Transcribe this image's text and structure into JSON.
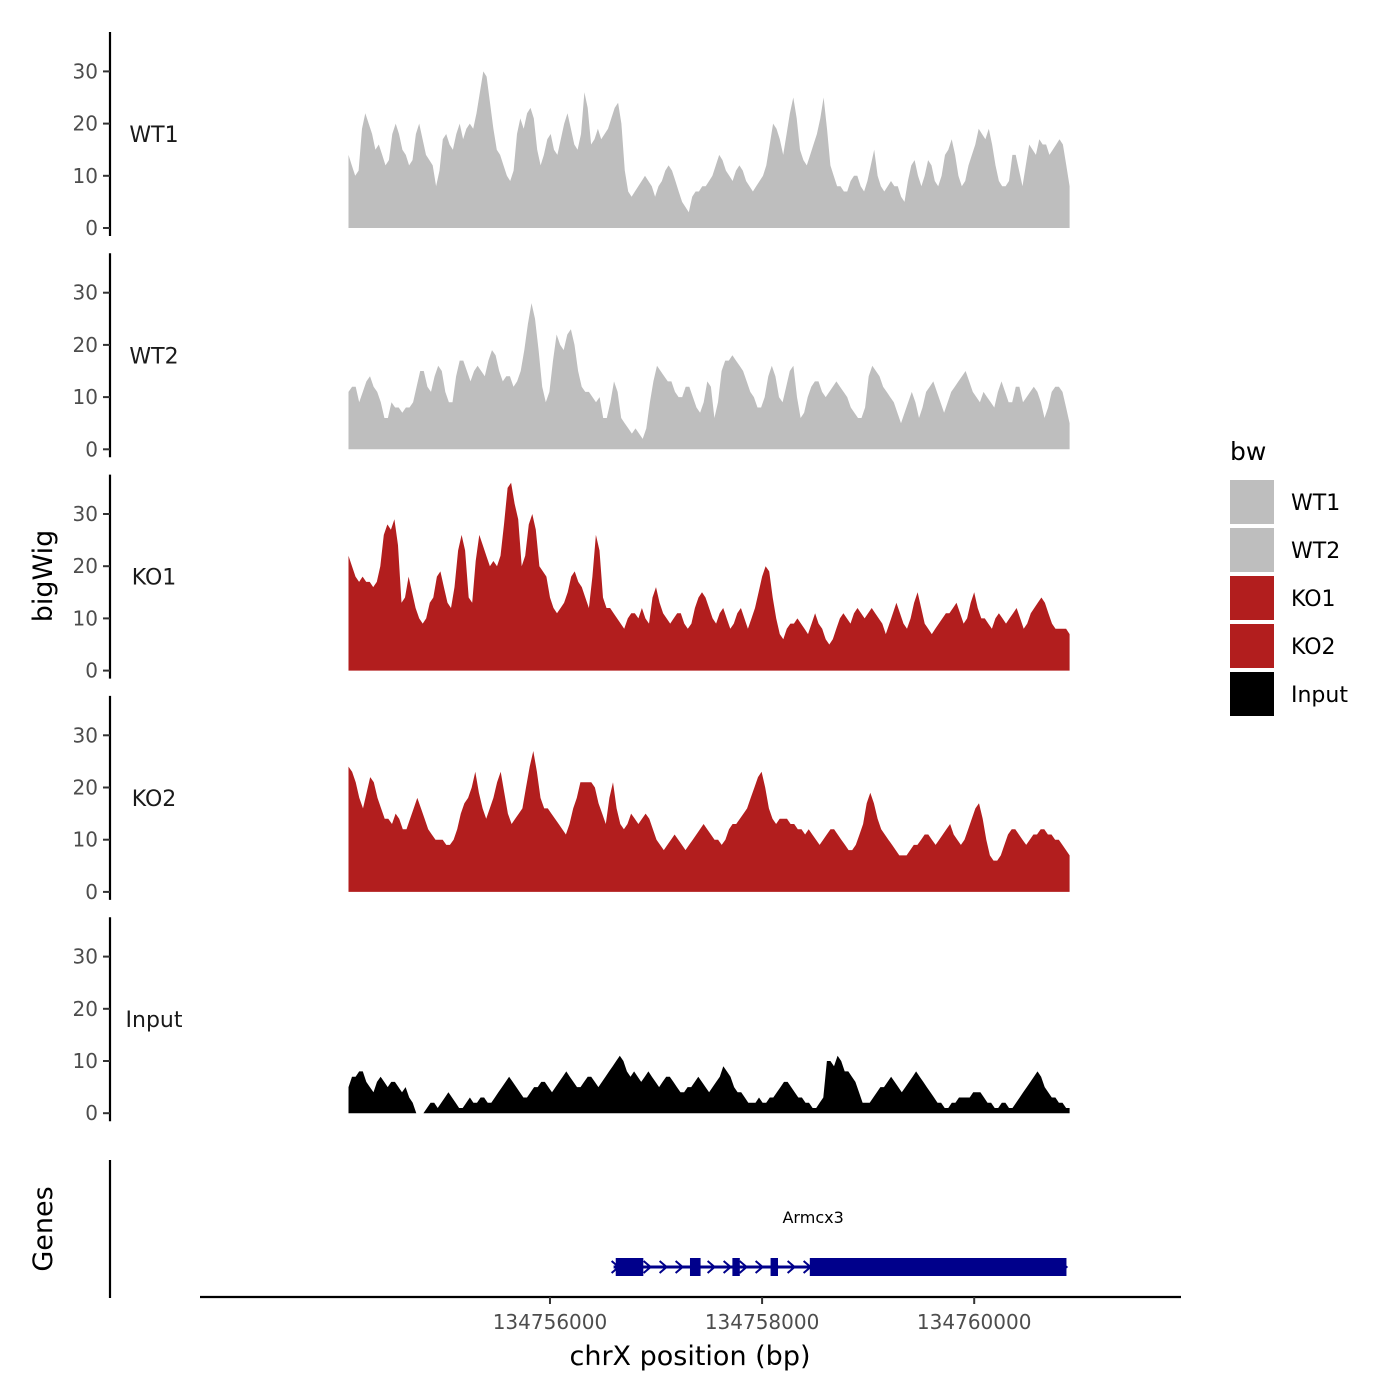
{
  "chart_data": {
    "type": "area",
    "xlabel": "chrX position (bp)",
    "ylabel": "bigWig",
    "xlim": [
      134752700,
      134761950
    ],
    "region_start": 134754100,
    "region_end": 134760900,
    "x_ticks": [
      {
        "value": 134756000,
        "label": "134756000"
      },
      {
        "value": 134758000,
        "label": "134758000"
      },
      {
        "value": 134760000,
        "label": "134760000"
      }
    ],
    "ylim": [
      0,
      37
    ],
    "y_ticks": [
      {
        "value": 0,
        "label": "0"
      },
      {
        "value": 10,
        "label": "10"
      },
      {
        "value": 20,
        "label": "20"
      },
      {
        "value": 30,
        "label": "30"
      }
    ],
    "series": [
      {
        "name": "WT1",
        "color": "#bebebe",
        "values": [
          14,
          12,
          10,
          11,
          19,
          22,
          20,
          18,
          15,
          16,
          14,
          12,
          13,
          18,
          20,
          18,
          15,
          14,
          12,
          13,
          18,
          20,
          17,
          14,
          13,
          12,
          8,
          11,
          17,
          18,
          16,
          15,
          18,
          20,
          17,
          19,
          20,
          19,
          22,
          26,
          30,
          29,
          24,
          19,
          15,
          14,
          12,
          10,
          9,
          11,
          18,
          21,
          19,
          22,
          23,
          21,
          15,
          12,
          14,
          17,
          18,
          15,
          14,
          17,
          20,
          22,
          19,
          16,
          15,
          18,
          26,
          23,
          16,
          17,
          19,
          17,
          18,
          19,
          21,
          23,
          24,
          20,
          11,
          7,
          6,
          7,
          8,
          9,
          10,
          9,
          8,
          6,
          8,
          9,
          11,
          12,
          11,
          9,
          7,
          5,
          4,
          3,
          6,
          7,
          7,
          8,
          8,
          9,
          10,
          12,
          14,
          13,
          11,
          10,
          9,
          11,
          12,
          11,
          9,
          8,
          7,
          8,
          9,
          10,
          12,
          16,
          20,
          19,
          17,
          14,
          18,
          22,
          25,
          21,
          15,
          13,
          12,
          14,
          16,
          18,
          21,
          25,
          19,
          12,
          10,
          8,
          8,
          7,
          7,
          9,
          10,
          10,
          8,
          7,
          9,
          12,
          15,
          10,
          8,
          7,
          8,
          9,
          8,
          8,
          6,
          5,
          9,
          12,
          13,
          10,
          8,
          10,
          13,
          12,
          9,
          8,
          10,
          14,
          15,
          17,
          14,
          10,
          8,
          9,
          12,
          14,
          16,
          19,
          18,
          17,
          19,
          16,
          12,
          9,
          8,
          8,
          9,
          14,
          14,
          11,
          8,
          12,
          16,
          15,
          14,
          17,
          16,
          16,
          14,
          15,
          16,
          17,
          16,
          12,
          8
        ]
      },
      {
        "name": "WT2",
        "color": "#bebebe",
        "values": [
          11,
          12,
          12,
          9,
          11,
          13,
          14,
          12,
          11,
          9,
          6,
          6,
          9,
          8,
          8,
          7,
          8,
          8,
          9,
          12,
          15,
          15,
          12,
          11,
          14,
          16,
          15,
          11,
          9,
          9,
          14,
          17,
          17,
          15,
          13,
          15,
          16,
          15,
          14,
          17,
          19,
          18,
          15,
          13,
          14,
          14,
          12,
          13,
          15,
          19,
          24,
          28,
          25,
          19,
          12,
          9,
          11,
          17,
          22,
          20,
          19,
          22,
          23,
          20,
          15,
          12,
          11,
          11,
          10,
          9,
          10,
          6,
          6,
          9,
          13,
          11,
          6,
          5,
          4,
          3,
          4,
          3,
          2,
          4,
          9,
          13,
          16,
          15,
          14,
          13,
          13,
          11,
          10,
          10,
          12,
          12,
          10,
          8,
          7,
          9,
          13,
          12,
          6,
          9,
          15,
          17,
          17,
          18,
          17,
          16,
          15,
          13,
          11,
          10,
          8,
          8,
          10,
          14,
          16,
          14,
          10,
          9,
          12,
          15,
          16,
          10,
          6,
          7,
          10,
          12,
          13,
          13,
          11,
          10,
          11,
          12,
          13,
          12,
          11,
          10,
          8,
          7,
          6,
          6,
          8,
          14,
          16,
          15,
          14,
          12,
          11,
          10,
          9,
          7,
          5,
          7,
          9,
          11,
          9,
          6,
          8,
          11,
          12,
          13,
          11,
          9,
          7,
          9,
          11,
          12,
          13,
          14,
          15,
          13,
          11,
          10,
          9,
          11,
          10,
          9,
          8,
          11,
          13,
          11,
          9,
          9,
          12,
          12,
          9,
          10,
          11,
          12,
          11,
          9,
          6,
          8,
          11,
          12,
          12,
          11,
          8,
          5
        ]
      },
      {
        "name": "KO1",
        "color": "#b21e1e",
        "values": [
          22,
          20,
          18,
          17,
          18,
          17,
          17,
          16,
          17,
          20,
          26,
          28,
          27,
          29,
          24,
          13,
          14,
          18,
          15,
          12,
          10,
          9,
          10,
          13,
          14,
          18,
          19,
          16,
          13,
          12,
          16,
          23,
          26,
          23,
          14,
          13,
          21,
          26,
          24,
          22,
          20,
          21,
          20,
          22,
          28,
          35,
          36,
          32,
          29,
          20,
          22,
          28,
          30,
          27,
          20,
          19,
          18,
          14,
          12,
          11,
          12,
          13,
          15,
          18,
          19,
          17,
          16,
          14,
          12,
          18,
          26,
          23,
          14,
          12,
          12,
          11,
          10,
          9,
          8,
          10,
          11,
          11,
          10,
          12,
          10,
          9,
          14,
          16,
          13,
          11,
          10,
          9,
          10,
          11,
          11,
          9,
          8,
          9,
          12,
          14,
          15,
          14,
          12,
          10,
          9,
          11,
          12,
          10,
          8,
          9,
          11,
          12,
          10,
          8,
          10,
          12,
          15,
          18,
          20,
          19,
          14,
          10,
          7,
          6,
          8,
          9,
          9,
          10,
          9,
          8,
          7,
          9,
          11,
          9,
          8,
          6,
          5,
          6,
          8,
          10,
          11,
          10,
          9,
          11,
          12,
          11,
          10,
          11,
          12,
          11,
          10,
          9,
          7,
          9,
          11,
          13,
          11,
          9,
          8,
          10,
          13,
          15,
          12,
          9,
          8,
          7,
          8,
          9,
          10,
          11,
          11,
          12,
          13,
          11,
          9,
          10,
          13,
          15,
          12,
          10,
          10,
          9,
          8,
          10,
          11,
          10,
          9,
          10,
          11,
          12,
          10,
          8,
          9,
          11,
          12,
          13,
          14,
          13,
          11,
          9,
          8,
          8,
          8,
          8,
          7
        ]
      },
      {
        "name": "KO2",
        "color": "#b21e1e",
        "values": [
          24,
          23,
          21,
          18,
          16,
          19,
          22,
          21,
          18,
          16,
          14,
          14,
          13,
          15,
          14,
          12,
          12,
          14,
          16,
          18,
          16,
          14,
          12,
          11,
          10,
          10,
          10,
          9,
          9,
          10,
          12,
          15,
          17,
          18,
          20,
          23,
          19,
          16,
          14,
          16,
          18,
          21,
          23,
          19,
          15,
          13,
          14,
          15,
          16,
          20,
          24,
          27,
          23,
          18,
          16,
          16,
          15,
          14,
          13,
          12,
          11,
          13,
          16,
          18,
          21,
          21,
          21,
          21,
          20,
          17,
          15,
          13,
          18,
          21,
          16,
          13,
          12,
          13,
          15,
          14,
          13,
          14,
          15,
          14,
          12,
          10,
          9,
          8,
          9,
          10,
          11,
          10,
          9,
          8,
          9,
          10,
          11,
          12,
          13,
          12,
          11,
          10,
          10,
          9,
          10,
          12,
          13,
          13,
          14,
          15,
          16,
          18,
          20,
          22,
          23,
          20,
          16,
          14,
          13,
          14,
          14,
          14,
          13,
          13,
          12,
          12,
          11,
          12,
          11,
          10,
          9,
          10,
          11,
          12,
          12,
          11,
          10,
          9,
          8,
          8,
          9,
          11,
          13,
          17,
          19,
          17,
          14,
          12,
          11,
          10,
          9,
          8,
          7,
          7,
          7,
          8,
          9,
          9,
          10,
          11,
          11,
          10,
          9,
          10,
          11,
          12,
          13,
          11,
          10,
          9,
          10,
          12,
          14,
          16,
          17,
          14,
          10,
          7,
          6,
          6,
          7,
          9,
          11,
          12,
          12,
          11,
          10,
          9,
          10,
          11,
          11,
          12,
          12,
          11,
          11,
          10,
          10,
          9,
          8,
          7
        ]
      },
      {
        "name": "Input",
        "color": "#000000",
        "values": [
          5,
          7,
          7,
          8,
          8,
          6,
          5,
          4,
          6,
          7,
          6,
          5,
          6,
          6,
          5,
          4,
          5,
          3,
          2,
          0,
          0,
          0,
          1,
          2,
          2,
          1,
          2,
          3,
          4,
          3,
          2,
          1,
          1,
          2,
          3,
          2,
          2,
          3,
          3,
          2,
          2,
          3,
          4,
          5,
          6,
          7,
          6,
          5,
          4,
          3,
          3,
          4,
          5,
          5,
          6,
          6,
          5,
          4,
          5,
          6,
          7,
          8,
          7,
          6,
          5,
          5,
          6,
          7,
          7,
          6,
          5,
          6,
          7,
          8,
          9,
          10,
          11,
          10,
          8,
          7,
          8,
          7,
          6,
          7,
          8,
          7,
          6,
          5,
          6,
          7,
          7,
          6,
          5,
          4,
          4,
          5,
          5,
          6,
          7,
          6,
          5,
          4,
          5,
          6,
          7,
          9,
          8,
          7,
          5,
          4,
          4,
          3,
          2,
          2,
          2,
          3,
          2,
          2,
          3,
          3,
          4,
          5,
          6,
          6,
          5,
          4,
          3,
          3,
          2,
          2,
          1,
          1,
          2,
          3,
          10,
          10,
          9,
          11,
          10,
          8,
          8,
          7,
          6,
          4,
          2,
          2,
          2,
          3,
          4,
          5,
          5,
          6,
          7,
          6,
          5,
          4,
          5,
          6,
          7,
          8,
          7,
          6,
          5,
          4,
          3,
          2,
          2,
          1,
          1,
          2,
          2,
          3,
          3,
          3,
          3,
          4,
          4,
          4,
          3,
          2,
          2,
          1,
          1,
          2,
          2,
          1,
          1,
          2,
          3,
          4,
          5,
          6,
          7,
          8,
          7,
          5,
          4,
          3,
          3,
          2,
          2,
          1,
          1
        ]
      }
    ],
    "legend": {
      "title": "bw",
      "position": "right",
      "entries": [
        {
          "label": "WT1",
          "color": "#bebebe"
        },
        {
          "label": "WT2",
          "color": "#bebebe"
        },
        {
          "label": "KO1",
          "color": "#b21e1e"
        },
        {
          "label": "KO2",
          "color": "#b21e1e"
        },
        {
          "label": "Input",
          "color": "#000000"
        }
      ]
    },
    "genes_track": {
      "label": "Genes",
      "color": "#00008b",
      "gene": {
        "name": "Armcx3",
        "start": 134756600,
        "end": 134760870,
        "strand": "+",
        "exons": [
          {
            "start": 134756620,
            "end": 134756880
          },
          {
            "start": 134757320,
            "end": 134757420
          },
          {
            "start": 134757720,
            "end": 134757790
          },
          {
            "start": 134758080,
            "end": 134758150
          },
          {
            "start": 134758450,
            "end": 134760870
          }
        ]
      }
    }
  }
}
